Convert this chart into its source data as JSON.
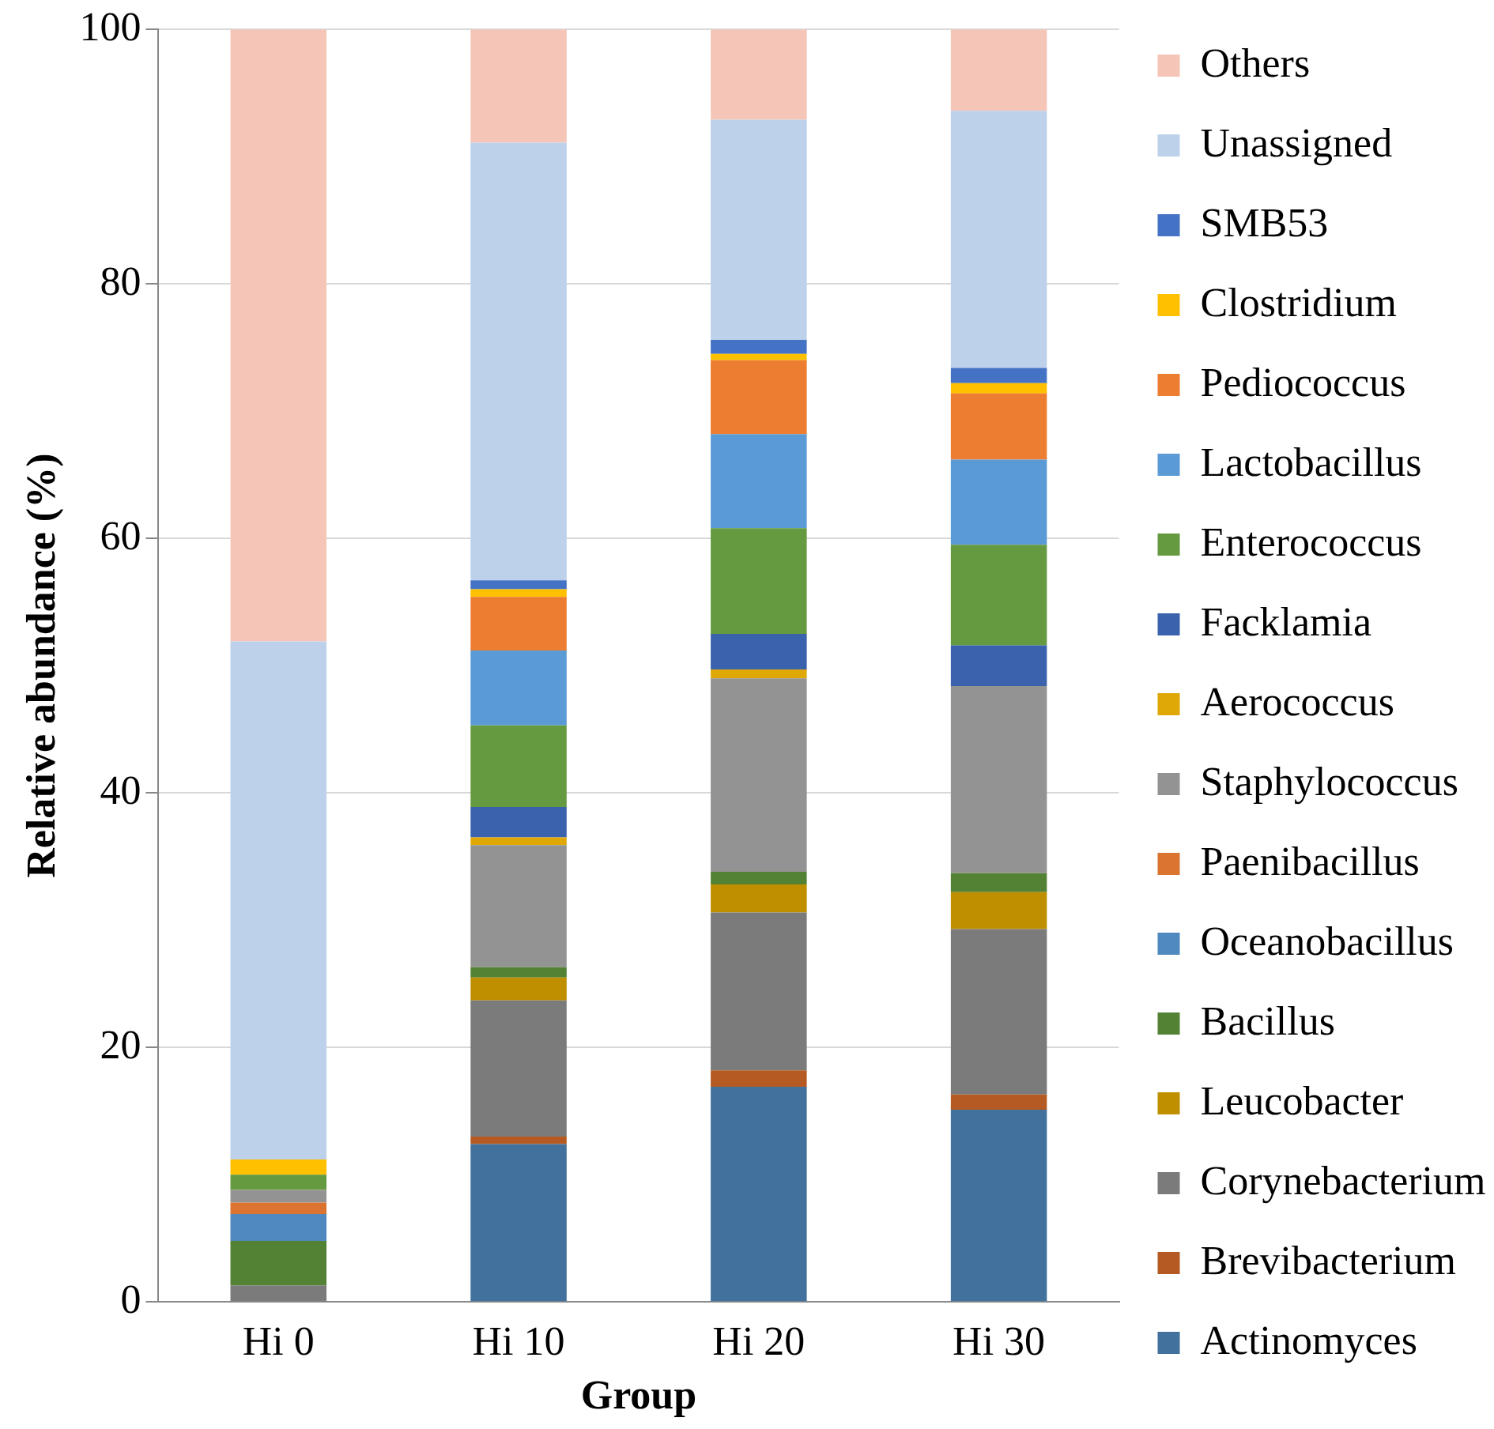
{
  "chart_data": {
    "type": "bar",
    "stacked": true,
    "xlabel": "Group",
    "ylabel": "Relative abundance (%)",
    "categories": [
      "Hi 0",
      "Hi 10",
      "Hi 20",
      "Hi 30"
    ],
    "ylim": [
      0,
      100
    ],
    "yticks": [
      0,
      20,
      40,
      60,
      80,
      100
    ],
    "grid": "y",
    "legend": "right",
    "series": [
      {
        "name": "Actinomyces",
        "color": "#41719c",
        "values": [
          0,
          12.4,
          16.9,
          15.1
        ]
      },
      {
        "name": "Brevibacterium",
        "color": "#b55a22",
        "values": [
          0,
          0.6,
          1.3,
          1.2
        ]
      },
      {
        "name": "Corynebacterium",
        "color": "#7b7b7b",
        "values": [
          1.3,
          10.7,
          12.4,
          13
        ]
      },
      {
        "name": "Leucobacter",
        "color": "#bf8f00",
        "values": [
          0,
          1.8,
          2.2,
          2.9
        ]
      },
      {
        "name": "Bacillus",
        "color": "#548235",
        "values": [
          3.5,
          0.8,
          1,
          1.5
        ]
      },
      {
        "name": "Oceanobacillus",
        "color": "#4f89c0",
        "values": [
          2.1,
          0,
          0,
          0
        ]
      },
      {
        "name": "Paenibacillus",
        "color": "#db7430",
        "values": [
          0.9,
          0,
          0,
          0
        ]
      },
      {
        "name": "Staphylococcus",
        "color": "#939393",
        "values": [
          1,
          9.6,
          15.2,
          14.7
        ]
      },
      {
        "name": "Aerococcus",
        "color": "#dfa806",
        "values": [
          0,
          0.6,
          0.7,
          0
        ]
      },
      {
        "name": "Facklamia",
        "color": "#3b62ac",
        "values": [
          0,
          2.4,
          2.8,
          3.2
        ]
      },
      {
        "name": "Enterococcus",
        "color": "#659a40",
        "values": [
          1.2,
          6.4,
          8.3,
          7.9
        ]
      },
      {
        "name": "Lactobacillus",
        "color": "#5b9bd5",
        "values": [
          0,
          5.9,
          7.4,
          6.7
        ]
      },
      {
        "name": "Pediococcus",
        "color": "#ed7d31",
        "values": [
          0,
          4.2,
          5.8,
          5.2
        ]
      },
      {
        "name": "Clostridium",
        "color": "#ffc000",
        "values": [
          1.2,
          0.6,
          0.5,
          0.8
        ]
      },
      {
        "name": "SMB53",
        "color": "#4472c4",
        "values": [
          0,
          0.7,
          1.1,
          1.2
        ]
      },
      {
        "name": "Unassigned",
        "color": "#bdd1ea",
        "values": [
          40.7,
          34.4,
          17.3,
          20.2
        ]
      },
      {
        "name": "Others",
        "color": "#f5c6b7",
        "values": [
          48.1,
          8.9,
          7.1,
          6.4
        ]
      }
    ]
  }
}
